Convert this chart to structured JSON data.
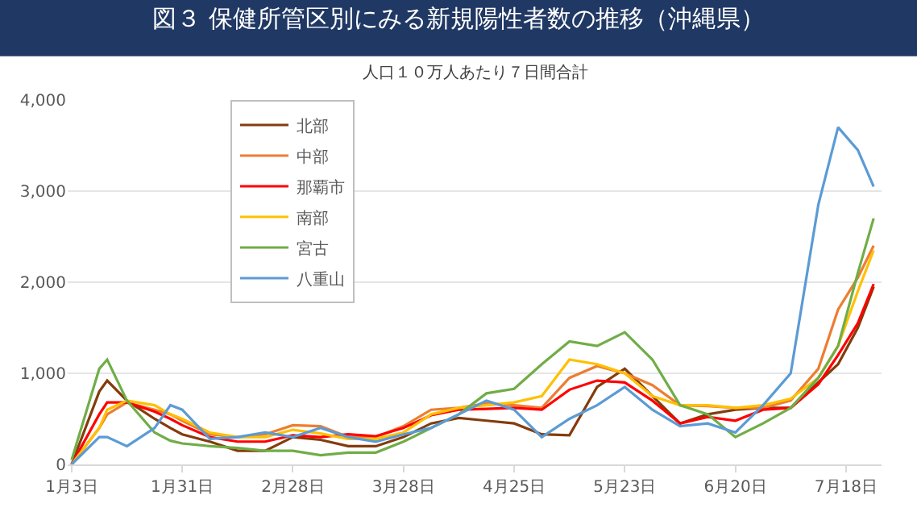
{
  "chart_data": {
    "type": "line",
    "title": "図３ 保健所管区別にみる新規陽性者数の推移（沖縄県）",
    "subtitle": "人口１０万人あたり７日間合計",
    "x": [
      "--01-03",
      "--01-10",
      "--01-12",
      "--01-17",
      "--01-24",
      "--01-28",
      "--01-31",
      "--02-07",
      "--02-14",
      "--02-21",
      "--02-28",
      "--03-07",
      "--03-14",
      "--03-21",
      "--03-28",
      "--04-04",
      "--04-11",
      "--04-18",
      "--04-25",
      "--05-02",
      "--05-09",
      "--05-16",
      "--05-23",
      "--05-30",
      "--06-06",
      "--06-13",
      "--06-20",
      "--06-27",
      "--07-04",
      "--07-11",
      "--07-16",
      "--07-21",
      "--07-25"
    ],
    "series": [
      {
        "name": "北部",
        "color": "#843c0c",
        "values": [
          0,
          800,
          920,
          700,
          500,
          400,
          330,
          250,
          150,
          150,
          300,
          270,
          200,
          200,
          300,
          450,
          510,
          480,
          450,
          330,
          320,
          850,
          1050,
          750,
          450,
          550,
          600,
          620,
          620,
          900,
          1100,
          1500,
          1950
        ]
      },
      {
        "name": "中部",
        "color": "#ed7d31",
        "values": [
          0,
          400,
          550,
          680,
          600,
          550,
          480,
          330,
          300,
          330,
          430,
          420,
          300,
          300,
          420,
          600,
          620,
          670,
          650,
          620,
          950,
          1080,
          1000,
          870,
          650,
          640,
          620,
          620,
          700,
          1050,
          1700,
          2050,
          2400
        ]
      },
      {
        "name": "那覇市",
        "color": "#ff0000",
        "values": [
          0,
          550,
          680,
          680,
          580,
          500,
          430,
          300,
          250,
          250,
          320,
          300,
          330,
          310,
          400,
          540,
          600,
          610,
          620,
          600,
          820,
          920,
          900,
          700,
          450,
          520,
          480,
          600,
          620,
          880,
          1200,
          1550,
          1980
        ]
      },
      {
        "name": "南部",
        "color": "#ffc000",
        "values": [
          0,
          400,
          600,
          700,
          650,
          550,
          500,
          350,
          300,
          300,
          380,
          340,
          280,
          280,
          350,
          550,
          620,
          650,
          680,
          750,
          1150,
          1100,
          1000,
          750,
          650,
          650,
          620,
          650,
          720,
          950,
          1300,
          1900,
          2350
        ]
      },
      {
        "name": "宮古",
        "color": "#70ad47",
        "values": [
          50,
          1050,
          1150,
          700,
          350,
          260,
          230,
          200,
          180,
          150,
          150,
          100,
          130,
          130,
          250,
          400,
          550,
          780,
          830,
          1100,
          1350,
          1300,
          1450,
          1150,
          650,
          550,
          300,
          450,
          620,
          950,
          1300,
          2100,
          2700
        ]
      },
      {
        "name": "八重山",
        "color": "#5b9bd5",
        "values": [
          0,
          300,
          300,
          200,
          400,
          650,
          600,
          280,
          300,
          350,
          300,
          400,
          300,
          250,
          330,
          400,
          550,
          700,
          600,
          300,
          500,
          650,
          850,
          600,
          420,
          450,
          350,
          650,
          1000,
          2850,
          3700,
          3450,
          3050
        ]
      }
    ],
    "xlim": [
      "--01-02",
      "--07-27"
    ],
    "xticks": [
      {
        "value": "--01-03",
        "label": "1月3日"
      },
      {
        "value": "--01-31",
        "label": "1月31日"
      },
      {
        "value": "--02-28",
        "label": "2月28日"
      },
      {
        "value": "--03-28",
        "label": "3月28日"
      },
      {
        "value": "--04-25",
        "label": "4月25日"
      },
      {
        "value": "--05-23",
        "label": "5月23日"
      },
      {
        "value": "--06-20",
        "label": "6月20日"
      },
      {
        "value": "--07-18",
        "label": "7月18日"
      }
    ],
    "ylim": [
      0,
      4000
    ],
    "yticks": [
      {
        "value": 0,
        "label": "0"
      },
      {
        "value": 1000,
        "label": "1,000"
      },
      {
        "value": 2000,
        "label": "2,000"
      },
      {
        "value": 3000,
        "label": "3,000"
      },
      {
        "value": 4000,
        "label": "4,000"
      }
    ],
    "grid": "y",
    "legend": "top left",
    "marker": "none",
    "line_style": "solid"
  }
}
